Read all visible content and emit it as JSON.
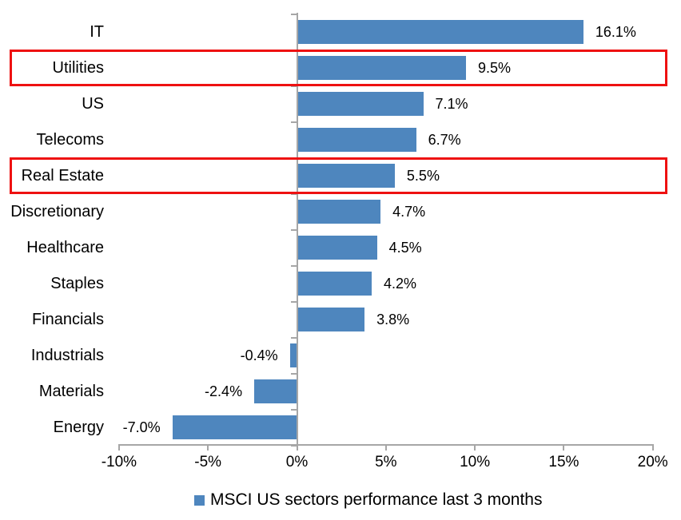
{
  "chart_data": {
    "type": "bar",
    "orientation": "horizontal",
    "title": "",
    "categories": [
      "IT",
      "Utilities",
      "US",
      "Telecoms",
      "Real Estate",
      "Discretionary",
      "Healthcare",
      "Staples",
      "Financials",
      "Industrials",
      "Materials",
      "Energy"
    ],
    "values": [
      16.1,
      9.5,
      7.1,
      6.7,
      5.5,
      4.7,
      4.5,
      4.2,
      3.8,
      -0.4,
      -2.4,
      -7.0
    ],
    "value_labels": [
      "16.1%",
      "9.5%",
      "7.1%",
      "6.7%",
      "5.5%",
      "4.7%",
      "4.5%",
      "4.2%",
      "3.8%",
      "-0.4%",
      "-2.4%",
      "-7.0%"
    ],
    "highlighted_categories": [
      "Utilities",
      "Real Estate"
    ],
    "x_tick_labels": [
      "-10%",
      "-5%",
      "0%",
      "5%",
      "10%",
      "15%",
      "20%"
    ],
    "x_tick_values": [
      -10,
      -5,
      0,
      5,
      10,
      15,
      20
    ],
    "xlim": [
      -10,
      20
    ],
    "grid": false,
    "legend_position": "bottom-center",
    "legend": [
      {
        "label": "MSCI US sectors performance last 3 months",
        "color": "#4E86BE"
      }
    ],
    "bar_color": "#4E86BE",
    "highlight_box_color": "#EE1111",
    "axis_color": "#A6A6A6"
  }
}
